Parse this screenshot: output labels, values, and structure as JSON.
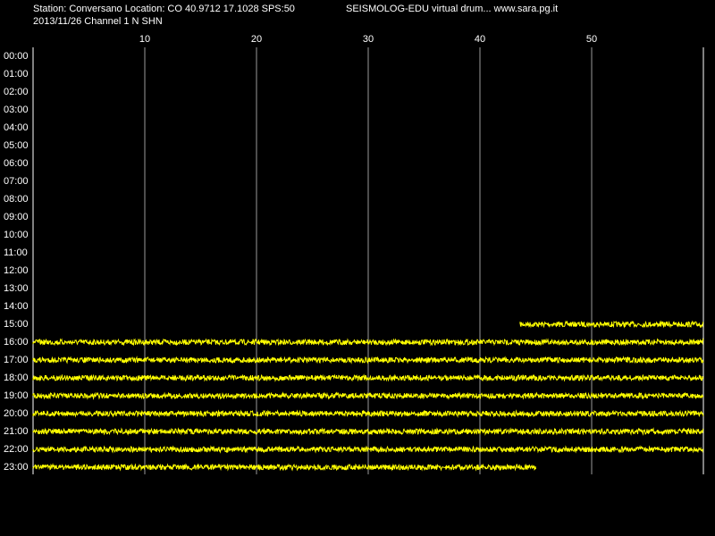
{
  "chart_data": {
    "type": "helicorder",
    "title": "Station: Conversano Location: CO 40.9712 17.1028 SPS:50",
    "title_right": "SEISMOLOG-EDU virtual drum... www.sara.pg.it",
    "subtitle": "2013/11/26  Channel 1 N SHN",
    "xlim": [
      0,
      60
    ],
    "xticks": [
      10,
      20,
      30,
      40,
      50
    ],
    "grid": true,
    "color": "#ffff00",
    "categories": [
      "00:00",
      "01:00",
      "02:00",
      "03:00",
      "04:00",
      "05:00",
      "06:00",
      "07:00",
      "08:00",
      "09:00",
      "10:00",
      "11:00",
      "12:00",
      "13:00",
      "14:00",
      "15:00",
      "16:00",
      "17:00",
      "18:00",
      "19:00",
      "20:00",
      "21:00",
      "22:00",
      "23:00"
    ],
    "start": [
      null,
      null,
      null,
      null,
      null,
      null,
      null,
      null,
      null,
      null,
      null,
      null,
      null,
      null,
      null,
      43.6,
      0,
      0,
      0,
      0,
      0,
      0,
      0,
      0
    ],
    "end": [
      null,
      null,
      null,
      null,
      null,
      null,
      null,
      null,
      null,
      null,
      null,
      null,
      null,
      null,
      null,
      60,
      60,
      60,
      60,
      60,
      60,
      60,
      60,
      45
    ]
  }
}
